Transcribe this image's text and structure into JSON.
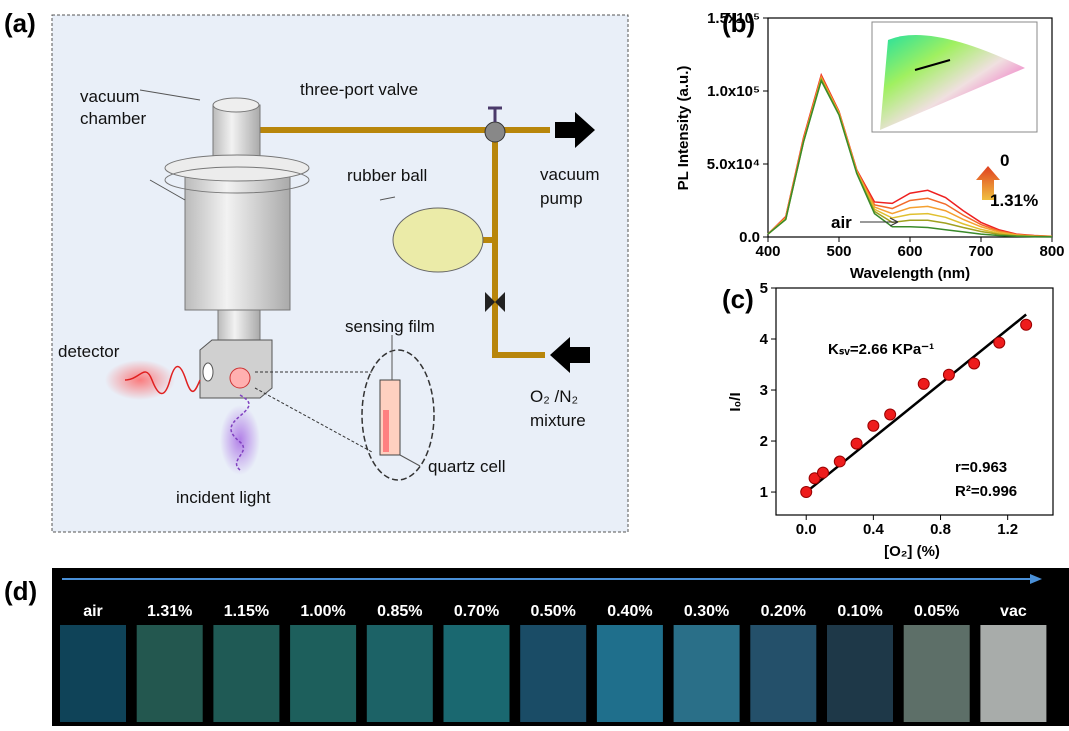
{
  "panel_a": {
    "label": "(a)",
    "vacuum_chamber": [
      "vacuum",
      "chamber"
    ],
    "valve": "three-port valve",
    "rubber_ball": "rubber ball",
    "vacuum_pump": [
      "vacuum",
      "pump"
    ],
    "detector": "detector",
    "sensing_film": "sensing film",
    "gas": [
      "O₂ /N₂",
      "mixture"
    ],
    "quartz_cell": "quartz cell",
    "incident_light": "incident light"
  },
  "chart_data": [
    {
      "type": "line",
      "label": "(b)",
      "xlabel": "Wavelength (nm)",
      "ylabel": "PL Intensity (a.u.)",
      "x": [
        400,
        425,
        450,
        475,
        500,
        525,
        550,
        575,
        600,
        625,
        650,
        675,
        700,
        725,
        750,
        775,
        800
      ],
      "xlim": [
        400,
        800
      ],
      "xticks": [
        400,
        500,
        600,
        700,
        800
      ],
      "ylim": [
        0,
        150000
      ],
      "yticks": [
        {
          "value": 0,
          "label": "0.0"
        },
        {
          "value": 50000,
          "label": "5.0x10⁴"
        },
        {
          "value": 100000,
          "label": "1.0x10⁵"
        },
        {
          "value": 150000,
          "label": "1.5x10⁵"
        }
      ],
      "annotations": [
        "0",
        "1.31%",
        "air"
      ],
      "series": [
        {
          "color": "#ee2020",
          "values": [
            2000,
            14000,
            68000,
            111000,
            86000,
            46000,
            24000,
            23000,
            30000,
            32000,
            27000,
            18000,
            10000,
            5000,
            2000,
            1000,
            500
          ]
        },
        {
          "color": "#f26a2a",
          "values": [
            2000,
            13500,
            67000,
            110000,
            85500,
            45500,
            22000,
            19500,
            25000,
            26500,
            22500,
            15000,
            8500,
            4200,
            1700,
            800,
            400
          ]
        },
        {
          "color": "#f5a030",
          "values": [
            2000,
            13000,
            66000,
            109000,
            85000,
            45000,
            20500,
            16000,
            20000,
            21000,
            18000,
            12000,
            7000,
            3500,
            1400,
            700,
            350
          ]
        },
        {
          "color": "#e0c030",
          "values": [
            2000,
            12500,
            65500,
            108500,
            84500,
            44500,
            19000,
            13000,
            15500,
            16000,
            13500,
            9000,
            5200,
            2600,
            1100,
            500,
            250
          ]
        },
        {
          "color": "#a0a020",
          "values": [
            2000,
            12000,
            65000,
            108000,
            84000,
            44000,
            17500,
            10000,
            11500,
            11500,
            9500,
            6500,
            3800,
            1900,
            800,
            400,
            200
          ]
        },
        {
          "color": "#3a8a2a",
          "values": [
            2000,
            12000,
            65000,
            107000,
            83500,
            43500,
            16000,
            7000,
            7000,
            6500,
            5000,
            3500,
            2000,
            1000,
            500,
            200,
            100
          ]
        }
      ]
    },
    {
      "type": "scatter",
      "label": "(c)",
      "xlabel": "[O₂] (%)",
      "ylabel": "I₀/I",
      "x": [
        0,
        0.05,
        0.1,
        0.2,
        0.3,
        0.4,
        0.5,
        0.7,
        0.85,
        1.0,
        1.15,
        1.31
      ],
      "values": [
        1.0,
        1.27,
        1.38,
        1.6,
        1.95,
        2.3,
        2.52,
        3.12,
        3.3,
        3.52,
        3.93,
        4.28
      ],
      "color": "#ee1c1c",
      "fit_line": {
        "x": [
          0,
          1.31
        ],
        "values": [
          1.0,
          4.48
        ],
        "color": "#000000"
      },
      "xlim": [
        -0.18,
        1.47
      ],
      "xticks": [
        {
          "value": 0,
          "label": "0.0"
        },
        0.4,
        0.8,
        1.2
      ],
      "ylim": [
        0.55,
        5
      ],
      "yticks": [
        1,
        2,
        3,
        4,
        5
      ],
      "annotations": [
        "Kₛᵥ=2.66 KPa⁻¹",
        "r=0.963",
        "R²=0.996"
      ]
    }
  ],
  "panel_d": {
    "label": "(d)",
    "swatches": [
      {
        "label": "air",
        "color": "#0f4358"
      },
      {
        "label": "1.31%",
        "color": "#23574f"
      },
      {
        "label": "1.15%",
        "color": "#1f5a55"
      },
      {
        "label": "1.00%",
        "color": "#1d5f5c"
      },
      {
        "label": "0.85%",
        "color": "#1c6266"
      },
      {
        "label": "0.70%",
        "color": "#1a6870"
      },
      {
        "label": "0.50%",
        "color": "#1a4c66"
      },
      {
        "label": "0.40%",
        "color": "#1f6f8c"
      },
      {
        "label": "0.30%",
        "color": "#2a6f88"
      },
      {
        "label": "0.20%",
        "color": "#24506a"
      },
      {
        "label": "0.10%",
        "color": "#1e3848"
      },
      {
        "label": "0.05%",
        "color": "#5d6f68"
      },
      {
        "label": "vac",
        "color": "#a8acaa"
      }
    ]
  }
}
